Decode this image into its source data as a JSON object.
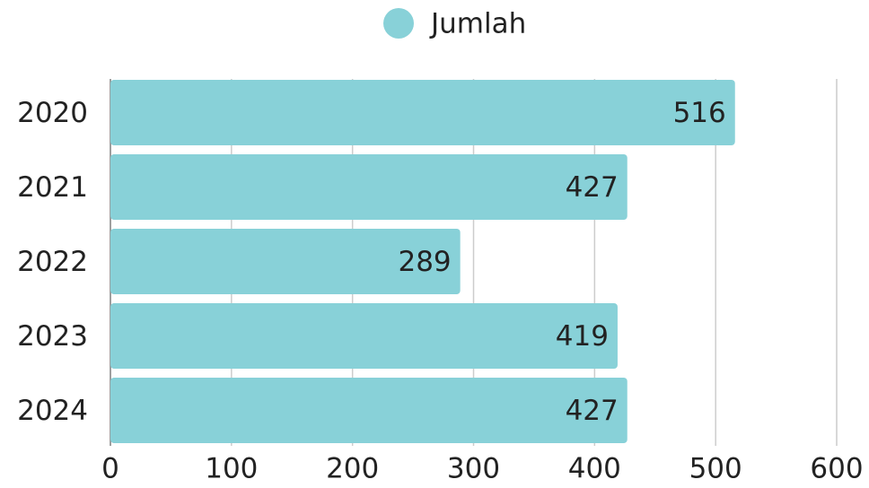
{
  "chart_data": {
    "type": "bar",
    "orientation": "horizontal",
    "categories": [
      "2020",
      "2021",
      "2022",
      "2023",
      "2024"
    ],
    "series": [
      {
        "name": "Jumlah",
        "color": "#88d1d8",
        "values": [
          516,
          427,
          289,
          419,
          427
        ]
      }
    ],
    "xlim": [
      0,
      600
    ],
    "xticks": [
      0,
      100,
      200,
      300,
      400,
      500,
      600
    ],
    "grid": true,
    "legend": "top"
  }
}
